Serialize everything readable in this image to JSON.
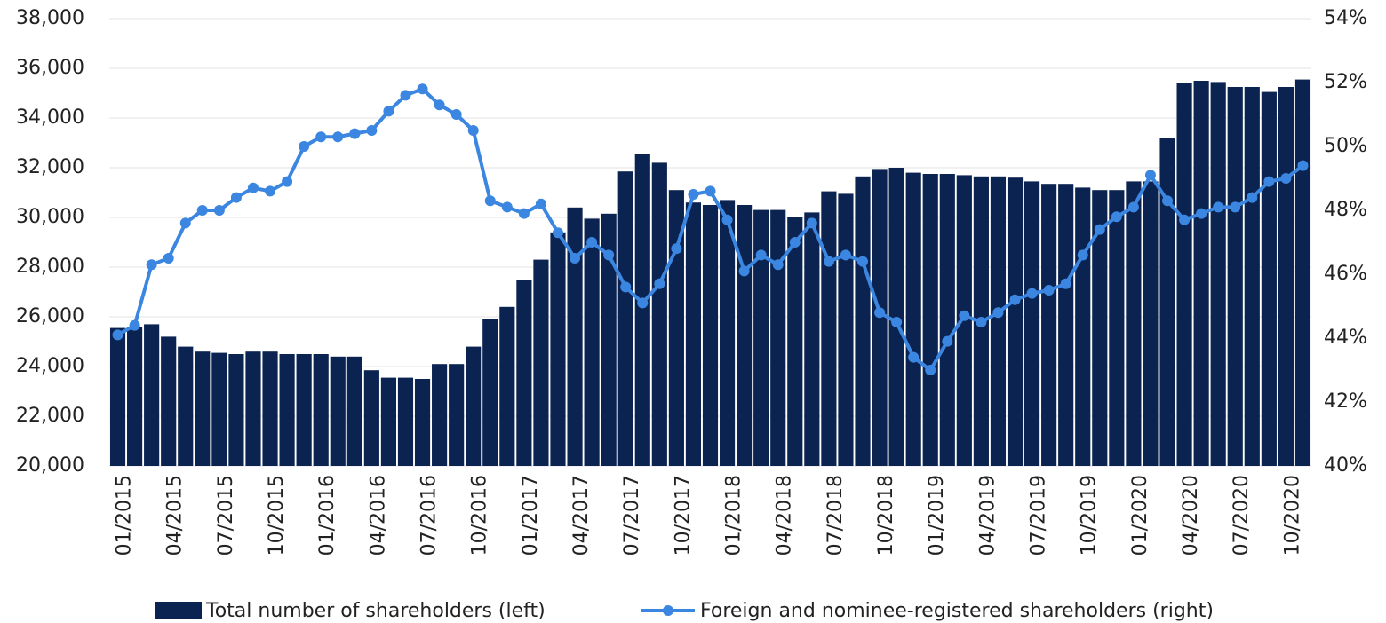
{
  "chart_data": {
    "type": "bar_line",
    "categories": [
      "01/2015",
      null,
      null,
      "04/2015",
      null,
      null,
      "07/2015",
      null,
      null,
      "10/2015",
      null,
      null,
      "01/2016",
      null,
      null,
      "04/2016",
      null,
      null,
      "07/2016",
      null,
      null,
      "10/2016",
      null,
      null,
      "01/2017",
      null,
      null,
      "04/2017",
      null,
      null,
      "07/2017",
      null,
      null,
      "10/2017",
      null,
      null,
      "01/2018",
      null,
      null,
      "04/2018",
      null,
      null,
      "07/2018",
      null,
      null,
      "10/2018",
      null,
      null,
      "01/2019",
      null,
      null,
      "04/2019",
      null,
      null,
      "07/2019",
      null,
      null,
      "10/2019",
      null,
      null,
      "01/2020",
      null,
      null,
      "04/2020",
      null,
      null,
      "07/2020",
      null,
      null,
      "10/2020",
      null
    ],
    "series": [
      {
        "name": "Total number of shareholders (left)",
        "type": "bar",
        "color": "#0b2350",
        "values": [
          25550,
          25600,
          25700,
          25200,
          24800,
          24600,
          24550,
          24500,
          24600,
          24600,
          24500,
          24500,
          24500,
          24400,
          24400,
          23850,
          23550,
          23550,
          23500,
          24100,
          24100,
          24800,
          25900,
          26400,
          27500,
          28300,
          29400,
          30400,
          29950,
          30150,
          31850,
          32550,
          32200,
          31100,
          30600,
          30500,
          30700,
          30500,
          30300,
          30300,
          30000,
          30200,
          31050,
          30950,
          31650,
          31950,
          32000,
          31800,
          31750,
          31750,
          31700,
          31650,
          31650,
          31600,
          31450,
          31350,
          31350,
          31200,
          31100,
          31100,
          31450,
          31450,
          33200,
          35400,
          35500,
          35450,
          35250,
          35250,
          35050,
          35250,
          35550
        ]
      },
      {
        "name": "Foreign and nominee-registered shareholders (right)",
        "type": "line",
        "axis": "y2",
        "color": "#3b86e0",
        "values": [
          44.1,
          44.4,
          46.3,
          46.5,
          47.6,
          48.0,
          48.0,
          48.4,
          48.7,
          48.6,
          48.9,
          50.0,
          50.3,
          50.3,
          50.4,
          50.5,
          51.1,
          51.6,
          51.8,
          51.3,
          51.0,
          50.5,
          48.3,
          48.1,
          47.9,
          48.2,
          47.3,
          46.5,
          47.0,
          46.6,
          45.6,
          45.1,
          45.7,
          46.8,
          48.5,
          48.6,
          47.7,
          46.1,
          46.6,
          46.3,
          47.0,
          47.6,
          46.4,
          46.6,
          46.4,
          44.8,
          44.5,
          43.4,
          43.0,
          43.9,
          44.7,
          44.5,
          44.8,
          45.2,
          45.4,
          45.5,
          45.7,
          46.6,
          47.4,
          47.8,
          48.1,
          49.1,
          48.3,
          47.7,
          47.9,
          48.1,
          48.1,
          48.4,
          48.9,
          49.0,
          49.4
        ]
      }
    ],
    "ylim": [
      20000,
      38000
    ],
    "yticks": [
      {
        "value": 20000,
        "label": "20,000"
      },
      {
        "value": 22000,
        "label": "22,000"
      },
      {
        "value": 24000,
        "label": "24,000"
      },
      {
        "value": 26000,
        "label": "26,000"
      },
      {
        "value": 28000,
        "label": "28,000"
      },
      {
        "value": 30000,
        "label": "30,000"
      },
      {
        "value": 32000,
        "label": "32,000"
      },
      {
        "value": 34000,
        "label": "34,000"
      },
      {
        "value": 36000,
        "label": "36,000"
      },
      {
        "value": 38000,
        "label": "38,000"
      }
    ],
    "y2lim": [
      40,
      54
    ],
    "y2ticks": [
      {
        "value": 40,
        "label": "40%"
      },
      {
        "value": 42,
        "label": "42%"
      },
      {
        "value": 44,
        "label": "44%"
      },
      {
        "value": 46,
        "label": "46%"
      },
      {
        "value": 48,
        "label": "48%"
      },
      {
        "value": 50,
        "label": "50%"
      },
      {
        "value": 52,
        "label": "52%"
      },
      {
        "value": 54,
        "label": "54%"
      }
    ],
    "grid": true,
    "legend": "bottom"
  }
}
